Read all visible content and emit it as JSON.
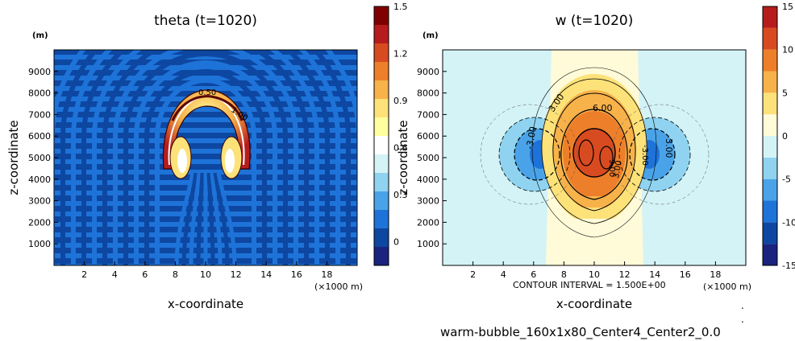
{
  "chart_data": [
    {
      "type": "heatmap",
      "title": "theta (t=1020)",
      "xlabel": "x-coordinate",
      "ylabel": "z-coordinate",
      "x_unit_label": "(×1000 m)",
      "y_unit_label": "(m)",
      "xlim": [
        0,
        20
      ],
      "ylim": [
        0,
        10000
      ],
      "x_ticks": [
        2,
        4,
        6,
        8,
        10,
        12,
        14,
        16,
        18
      ],
      "y_ticks": [
        1000,
        2000,
        3000,
        4000,
        5000,
        6000,
        7000,
        8000,
        9000
      ],
      "colorbar": {
        "min": -0.15,
        "max": 1.5,
        "labels": [
          "1.5",
          "1.2",
          "0.9",
          "0.6",
          "0.3",
          "0"
        ],
        "label_values": [
          1.5,
          1.2,
          0.9,
          0.6,
          0.3,
          0
        ],
        "colors": [
          "#1a237e",
          "#0d47a1",
          "#1e73d8",
          "#4aa3e8",
          "#8fd3f0",
          "#d4f3f6",
          "#ffffff",
          "#ffff9e",
          "#fde27a",
          "#f7b24a",
          "#ee7f2a",
          "#d84b20",
          "#b71c1c",
          "#7f0000"
        ]
      },
      "contour_labels": [
        "0.50",
        "1.00"
      ],
      "features": {
        "bubble_center_x": 10,
        "bubble_center_z": 6700,
        "cap_max_theta": 1.5,
        "background_theta": 0
      }
    },
    {
      "type": "heatmap",
      "title": "w (t=1020)",
      "xlabel": "x-coordinate",
      "ylabel": "z-coordinate",
      "x_unit_label": "(×1000 m)",
      "y_unit_label": "(m)",
      "xlim": [
        0,
        20
      ],
      "ylim": [
        0,
        10000
      ],
      "x_ticks": [
        2,
        4,
        6,
        8,
        10,
        12,
        14,
        16,
        18
      ],
      "y_ticks": [
        1000,
        2000,
        3000,
        4000,
        5000,
        6000,
        7000,
        8000,
        9000
      ],
      "colorbar": {
        "min": -15,
        "max": 15,
        "labels": [
          "15",
          "10",
          "5",
          "0",
          "-5",
          "-10",
          "-15"
        ],
        "label_values": [
          15,
          10,
          5,
          0,
          -5,
          -10,
          -15
        ],
        "colors": [
          "#1a237e",
          "#0d47a1",
          "#1e73d8",
          "#4aa3e8",
          "#8fd3f0",
          "#d4f3f6",
          "#fffbd9",
          "#fde27a",
          "#f7b24a",
          "#ee7f2a",
          "#d84b20",
          "#b71c1c"
        ]
      },
      "contour_interval_text": "CONTOUR INTERVAL = 1.500E+00",
      "contour_labels": [
        "6.00",
        "3.00",
        "-3.00",
        "-3.00",
        "9.00",
        "3.00",
        "-3.00"
      ],
      "features": {
        "updraft_max": 15,
        "downdraft_min": -12,
        "updraft_center_x": 10,
        "updraft_center_z": 5000,
        "downdraft_centers_x": [
          6.8,
          13.2
        ],
        "downdraft_center_z": 5200
      }
    }
  ],
  "footer": {
    "dots": [
      ".",
      "."
    ],
    "caption": "warm-bubble_160x1x80_Center4_Center2_0.0"
  }
}
